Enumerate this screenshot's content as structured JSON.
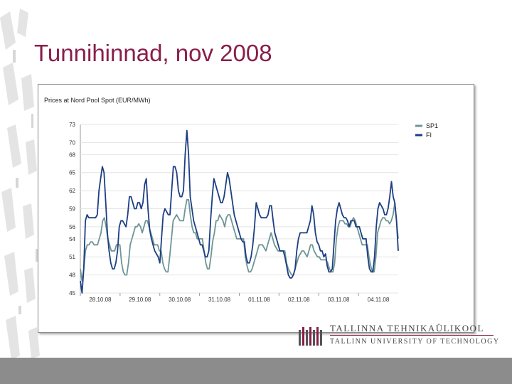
{
  "slide": {
    "title": "Tunnihinnad, nov 2008"
  },
  "logo": {
    "line1": "TALLINNA TEHNIKAÜLIKOOL",
    "line2": "TALLINN UNIVERSITY OF TECHNOLOGY"
  },
  "chart_data": {
    "type": "line",
    "title": "Prices at Nord Pool Spot (EUR/MWh)",
    "xlabel": "",
    "ylabel": "",
    "ylim": [
      45,
      73
    ],
    "yticks": [
      45,
      48,
      51,
      54,
      56,
      59,
      62,
      65,
      68,
      70,
      73
    ],
    "xticks": [
      "28.10.08",
      "29.10.08",
      "30.10.08",
      "31.10.08",
      "01.11.08",
      "02.11.08",
      "03.11.08",
      "04.11.08"
    ],
    "legend_position": "top-right",
    "series": [
      {
        "name": "SP1",
        "color": "#6f9595",
        "values": [
          49,
          47,
          49,
          52,
          53,
          53,
          53.5,
          53.5,
          53,
          53,
          53,
          54,
          55,
          57,
          57.5,
          56,
          54,
          53,
          52,
          52,
          52,
          53,
          53,
          53,
          50,
          48.5,
          48,
          48,
          50,
          53,
          54,
          55,
          56,
          56,
          56.5,
          56,
          55,
          56,
          57,
          57,
          56,
          55,
          54,
          53,
          53,
          53,
          52,
          52,
          50,
          49,
          48.5,
          48.5,
          51,
          54,
          57,
          57.5,
          58,
          57.5,
          57,
          57,
          57,
          59,
          60.5,
          60.5,
          58,
          56,
          55,
          55,
          54,
          54,
          54,
          54,
          52,
          50,
          49,
          49,
          51,
          53.5,
          55,
          57,
          57,
          58,
          57.5,
          57,
          56,
          57.5,
          58,
          58,
          57,
          56,
          55,
          54,
          54,
          54,
          54,
          54,
          51,
          49.5,
          48.5,
          48.5,
          49,
          50,
          51,
          52,
          53,
          53,
          53,
          52.5,
          52,
          53,
          54,
          55,
          54,
          53,
          52.5,
          52,
          52,
          52,
          52,
          52,
          50,
          49,
          48.5,
          48,
          48,
          49,
          50,
          51,
          51.5,
          52,
          52,
          51.5,
          51,
          52,
          53,
          53,
          52,
          51.5,
          51,
          51,
          50.5,
          50.5,
          50.5,
          50.5,
          50,
          49,
          48.5,
          48.5,
          50,
          54,
          56,
          57,
          57,
          57,
          56.5,
          56.5,
          56,
          56,
          57,
          57.5,
          57,
          56,
          55,
          54,
          53,
          53,
          53,
          53,
          51,
          49.5,
          48.5,
          48.5,
          51,
          55,
          56,
          57,
          57.5,
          57.5,
          57,
          57,
          56.5,
          57,
          58,
          60,
          57,
          54
        ]
      },
      {
        "name": "FI",
        "color": "#1c3e82",
        "values": [
          47,
          45,
          49,
          57,
          58,
          57.5,
          57.5,
          57.5,
          57.5,
          57.5,
          58,
          62,
          64,
          66,
          65,
          60,
          55,
          52,
          50,
          49,
          49,
          50,
          52,
          56,
          57,
          57,
          56.5,
          56,
          58,
          61,
          61,
          60,
          59,
          59,
          60,
          60,
          59,
          60,
          63,
          64,
          59,
          55.5,
          54,
          53,
          52,
          51.5,
          51,
          50,
          54,
          58,
          59,
          58.5,
          58,
          58,
          62,
          66,
          66,
          65,
          62,
          61,
          61,
          62,
          68,
          72,
          68,
          61,
          59,
          57,
          56,
          55,
          54,
          53,
          53,
          52,
          51,
          51,
          52,
          57,
          61,
          64,
          63,
          62,
          61,
          60,
          60,
          61,
          63,
          65,
          64,
          62,
          60,
          58,
          57,
          56,
          55,
          54,
          53.5,
          53.5,
          51,
          50,
          50,
          51,
          53,
          56,
          60,
          59,
          58,
          57.5,
          57.5,
          57.5,
          57.5,
          58,
          59.5,
          59.5,
          57,
          55,
          54,
          53,
          52,
          52,
          52,
          51,
          49.5,
          48,
          47.5,
          47.5,
          48,
          49,
          52,
          54,
          55,
          55,
          55,
          55,
          55,
          56,
          57,
          59.5,
          58,
          55,
          53.5,
          53,
          52,
          52,
          51,
          51.5,
          49.5,
          48.5,
          48.5,
          49,
          53,
          57,
          59,
          60,
          59,
          58,
          57.5,
          57.5,
          57,
          56,
          57,
          57,
          57,
          56,
          56,
          56,
          55,
          54,
          54,
          54,
          51,
          49,
          48.5,
          48.5,
          51,
          56,
          59,
          60,
          59.5,
          59,
          58,
          58,
          59,
          61,
          63.5,
          61,
          60,
          57,
          52
        ]
      }
    ]
  }
}
